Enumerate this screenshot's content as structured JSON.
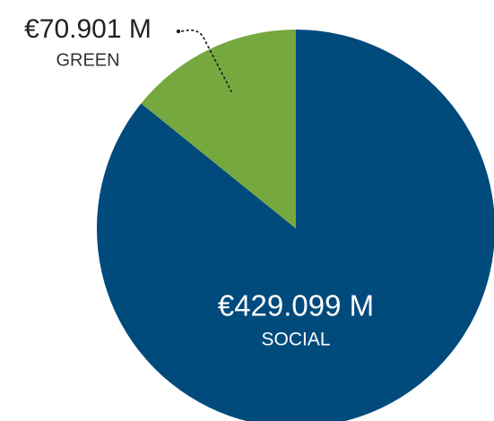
{
  "chart_data": {
    "type": "pie",
    "categories": [
      "SOCIAL",
      "GREEN"
    ],
    "values": [
      429.099,
      70.901
    ],
    "value_labels": [
      "€429.099 M",
      "€70.901 M"
    ],
    "colors": [
      "#004a7c",
      "#76a840"
    ]
  }
}
